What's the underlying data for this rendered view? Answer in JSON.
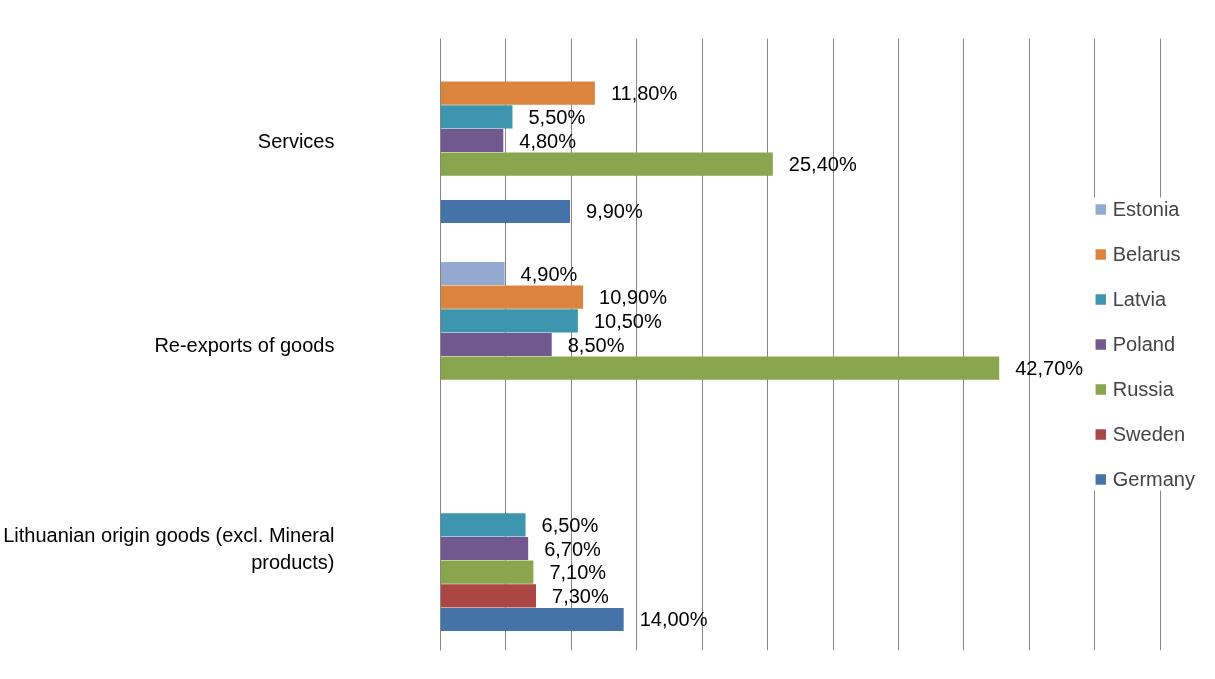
{
  "chart_data": {
    "type": "bar",
    "orientation": "horizontal",
    "categories": [
      "Services",
      "Re-exports of goods",
      "Lithuanian origin goods (excl. Mineral products)"
    ],
    "series": [
      {
        "name": "Estonia",
        "color": "#93a9cf",
        "values": [
          null,
          4.9,
          null
        ],
        "value_labels": [
          null,
          "4,90%",
          null
        ]
      },
      {
        "name": "Belarus",
        "color": "#db843d",
        "values": [
          11.8,
          10.9,
          null
        ],
        "value_labels": [
          "11,80%",
          "10,90%",
          null
        ]
      },
      {
        "name": "Latvia",
        "color": "#3d96ae",
        "values": [
          5.5,
          10.5,
          6.5
        ],
        "value_labels": [
          "5,50%",
          "10,50%",
          "6,50%"
        ]
      },
      {
        "name": "Poland",
        "color": "#71588f",
        "values": [
          4.8,
          8.5,
          6.7
        ],
        "value_labels": [
          "4,80%",
          "8,50%",
          "6,70%"
        ]
      },
      {
        "name": "Russia",
        "color": "#89a54e",
        "values": [
          25.4,
          42.7,
          7.1
        ],
        "value_labels": [
          "25,40%",
          "42,70%",
          "7,10%"
        ]
      },
      {
        "name": "Sweden",
        "color": "#aa4643",
        "values": [
          null,
          null,
          7.3
        ],
        "value_labels": [
          null,
          null,
          "7,30%"
        ]
      },
      {
        "name": "Germany",
        "color": "#4572a7",
        "values": [
          9.9,
          null,
          14.0
        ],
        "value_labels": [
          "9,90%",
          null,
          "14,00%"
        ]
      }
    ],
    "grid": "x",
    "legend": "right",
    "tick_labels": "y"
  }
}
